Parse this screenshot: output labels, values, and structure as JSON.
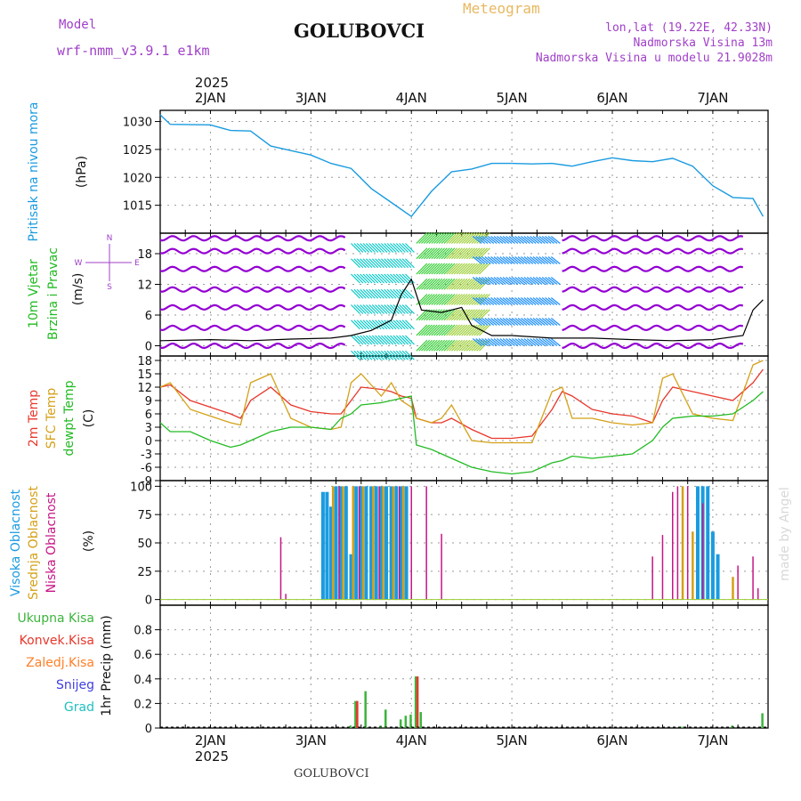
{
  "header": {
    "model_label": "Model",
    "model_name": "wrf-nmm_v3.9.1  e1km",
    "station": "GOLUBOVCI",
    "product": "Meteogram",
    "lonlat": "lon,lat (19.22E, 42.33N)",
    "elevation": "Nadmorska Visina 13m",
    "model_elevation": "Nadmorska Visina u modelu 21.9028m",
    "footer_station": "GOLUBOVCI",
    "credit": "made by Angel"
  },
  "colors": {
    "pressure": "#1a9be0",
    "wind_calm": "#9400d3",
    "wind_nw": "#00c8c8",
    "wind_s": "#32cd32",
    "wind_se": "#9acd32",
    "wind_w": "#1e90ff",
    "wind_speed": "#000000",
    "temp2m": "#e8372b",
    "sfc_temp": "#d4a017",
    "dewpoint": "#22bb22",
    "cloud_high": "#1a9be0",
    "cloud_mid": "#d4a017",
    "cloud_low": "#c71585",
    "precip_total": "#3cb43c",
    "precip_conv": "#e8372b",
    "precip_frozen": "#ff7f27",
    "precip_snow": "#4040e0",
    "precip_hail": "#20c0c0"
  },
  "chart_data": [
    {
      "type": "line",
      "panel": "pressure",
      "ylabel_left": "Pritisak na nivou mora",
      "ylabel_unit": "(hPa)",
      "ylim": [
        1010,
        1032
      ],
      "yticks": [
        1015,
        1020,
        1025,
        1030
      ],
      "x_days": [
        1.5,
        1.6,
        2.0,
        2.2,
        2.4,
        2.6,
        2.8,
        3.0,
        3.2,
        3.4,
        3.6,
        3.8,
        4.0,
        4.2,
        4.4,
        4.6,
        4.8,
        5.0,
        5.2,
        5.4,
        5.6,
        5.8,
        6.0,
        6.2,
        6.4,
        6.6,
        6.8,
        7.0,
        7.2,
        7.4,
        7.5
      ],
      "series": [
        {
          "values": [
            1031.2,
            1029.5,
            1029.4,
            1028.4,
            1028.3,
            1025.6,
            1024.8,
            1024.0,
            1022.5,
            1021.6,
            1018.0,
            1015.5,
            1013.0,
            1017.5,
            1021.0,
            1021.5,
            1022.5,
            1022.5,
            1022.4,
            1022.5,
            1022.0,
            1022.8,
            1023.5,
            1023.0,
            1022.8,
            1023.4,
            1022.0,
            1018.5,
            1016.4,
            1016.2,
            1013.0
          ]
        }
      ]
    },
    {
      "type": "line",
      "panel": "wind",
      "ylabel_left": "10m Vjetar",
      "ylabel_left2": "Brzina i Pravac",
      "ylabel_unit": "(m/s)",
      "compass": [
        "N",
        "W",
        "E",
        "S"
      ],
      "ylim": [
        -2,
        22
      ],
      "yticks": [
        0,
        6,
        12,
        18
      ],
      "x_days": [
        1.5,
        2.0,
        2.4,
        2.8,
        3.2,
        3.4,
        3.6,
        3.8,
        3.9,
        4.0,
        4.1,
        4.3,
        4.5,
        4.6,
        4.8,
        5.0,
        5.4,
        5.8,
        6.2,
        6.6,
        7.0,
        7.3,
        7.4,
        7.5
      ],
      "series": [
        {
          "values": [
            1.0,
            1.2,
            1.0,
            1.3,
            1.5,
            2.0,
            3.0,
            5.0,
            10.0,
            13.0,
            7.0,
            6.5,
            7.5,
            4.0,
            2.0,
            2.0,
            1.5,
            1.5,
            1.2,
            1.0,
            1.2,
            2.0,
            7.0,
            9.0
          ]
        }
      ]
    },
    {
      "type": "line",
      "panel": "temperature",
      "ylabel_left": "2m Temp",
      "ylabel_left2": "SFC Temp",
      "ylabel_left3": "dewpt Temp",
      "ylabel_unit": "(C)",
      "ylim": [
        -9,
        19
      ],
      "yticks": [
        -9,
        -6,
        -3,
        0,
        3,
        6,
        9,
        12,
        15,
        18
      ],
      "x_days": [
        1.5,
        1.6,
        1.8,
        2.0,
        2.2,
        2.3,
        2.4,
        2.6,
        2.8,
        3.0,
        3.2,
        3.3,
        3.4,
        3.5,
        3.7,
        3.8,
        3.9,
        4.0,
        4.05,
        4.2,
        4.3,
        4.4,
        4.6,
        4.8,
        5.0,
        5.2,
        5.4,
        5.5,
        5.6,
        5.8,
        6.0,
        6.2,
        6.4,
        6.5,
        6.6,
        6.8,
        7.0,
        7.2,
        7.4,
        7.5
      ],
      "series": [
        {
          "name": "2m Temp",
          "values": [
            12,
            12.5,
            9,
            7.5,
            6,
            5,
            9,
            12,
            8,
            6.5,
            6,
            6,
            9,
            12,
            11.5,
            11,
            10,
            9.5,
            5,
            4,
            4,
            5,
            2.5,
            0.5,
            0.5,
            1,
            7,
            11,
            10,
            7,
            6,
            5.5,
            4,
            9,
            12,
            11,
            10,
            9,
            13,
            16
          ]
        },
        {
          "name": "SFC Temp",
          "values": [
            12,
            13,
            7,
            5.5,
            4,
            3.5,
            13,
            15,
            5,
            3,
            2.5,
            3,
            13,
            15,
            10,
            13,
            9,
            7.5,
            5,
            4,
            5,
            8,
            0,
            -0.5,
            -0.5,
            -0.5,
            11,
            12,
            5,
            5,
            4,
            3.5,
            4,
            14,
            15,
            6,
            5,
            4.5,
            17,
            18
          ]
        },
        {
          "name": "dewpt Temp",
          "values": [
            4,
            2,
            2,
            0,
            -1.5,
            -1,
            0,
            2,
            3,
            3,
            2.5,
            5,
            6,
            8,
            8.5,
            9,
            9.5,
            10,
            -1,
            -2,
            -3,
            -4,
            -6,
            -7,
            -7.5,
            -7,
            -5,
            -4.5,
            -3.5,
            -4,
            -3.5,
            -3,
            0,
            3,
            5,
            5.5,
            5.5,
            6,
            9,
            11
          ]
        }
      ]
    },
    {
      "type": "bar",
      "panel": "clouds",
      "ylabel_left": "Visoka Oblacnost",
      "ylabel_left2": "Srednja Oblacnost",
      "ylabel_left3": "Niska Oblacnost",
      "ylabel_unit": "(%)",
      "ylim": [
        -5,
        105
      ],
      "yticks": [
        0,
        25,
        50,
        75,
        100
      ],
      "series": [
        {
          "name": "Visoka Oblacnost",
          "x_days": [
            3.12,
            3.16,
            3.2,
            3.25,
            3.3,
            3.35,
            3.4,
            3.45,
            3.5,
            3.55,
            3.6,
            3.65,
            3.7,
            3.75,
            3.8,
            3.85,
            3.9,
            3.95,
            6.85,
            6.9,
            6.95,
            7.0,
            7.05
          ],
          "values": [
            95,
            95,
            82,
            100,
            100,
            100,
            40,
            100,
            100,
            100,
            100,
            100,
            100,
            100,
            100,
            100,
            100,
            100,
            100,
            100,
            100,
            60,
            40
          ]
        },
        {
          "name": "Srednja Oblacnost",
          "x_days": [
            3.22,
            3.32,
            3.42,
            3.52,
            3.62,
            3.72,
            3.82,
            3.92,
            6.7,
            6.8,
            7.2
          ],
          "values": [
            100,
            100,
            100,
            100,
            100,
            100,
            100,
            100,
            100,
            60,
            20
          ]
        },
        {
          "name": "Niska Oblacnost",
          "x_days": [
            2.7,
            2.75,
            3.28,
            3.48,
            3.68,
            3.88,
            4.0,
            4.15,
            4.3,
            6.4,
            6.5,
            6.6,
            6.65,
            6.75,
            6.9,
            7.25,
            7.4,
            7.45
          ],
          "values": [
            55,
            5,
            100,
            100,
            100,
            100,
            100,
            100,
            58,
            38,
            57,
            95,
            100,
            100,
            85,
            30,
            38,
            10
          ]
        }
      ]
    },
    {
      "type": "bar",
      "panel": "precipitation",
      "legend": [
        "Ukupna Kisa",
        "Konvek.Kisa",
        "Zaledj.Kisa",
        "Snijeg",
        "Grad"
      ],
      "ylabel_unit": "1hr Precip (mm)",
      "ylim": [
        0,
        1.0
      ],
      "yticks": [
        0,
        0.2,
        0.4,
        0.6,
        0.8
      ],
      "series": [
        {
          "name": "Ukupna Kisa",
          "x_days": [
            3.4,
            3.45,
            3.55,
            3.7,
            3.75,
            3.9,
            3.95,
            4.0,
            4.05,
            4.1,
            6.7,
            7.2,
            7.5
          ],
          "values": [
            0.02,
            0.22,
            0.3,
            0.02,
            0.15,
            0.07,
            0.1,
            0.11,
            0.42,
            0.13,
            0.01,
            0.02,
            0.12
          ]
        },
        {
          "name": "Konvek.Kisa",
          "x_days": [
            3.45,
            4.05
          ],
          "values": [
            0.22,
            0.42
          ]
        }
      ]
    }
  ],
  "x_axis": {
    "day_labels": [
      "2JAN",
      "3JAN",
      "4JAN",
      "5JAN",
      "6JAN",
      "7JAN"
    ],
    "year_label": "2025",
    "xlim": [
      1.5,
      7.55
    ],
    "grid": true
  }
}
